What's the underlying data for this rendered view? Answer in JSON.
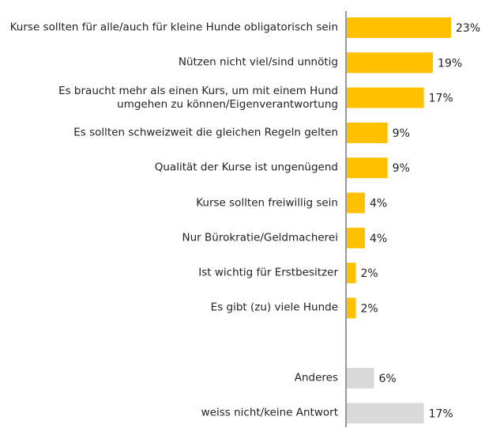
{
  "chart_data": {
    "type": "barh",
    "categories": [
      "Kurse sollten für alle/auch für kleine Hunde obligatorisch sein",
      "Nützen nicht viel/sind unnötig",
      "Es braucht mehr als einen Kurs, um mit einem Hund\numgehen zu können/Eigenverantwortung",
      "Es sollten schweizweit die gleichen Regeln gelten",
      "Qualität der Kurse ist ungenügend",
      "Kurse sollten freiwillig sein",
      "Nur Bürokratie/Geldmacherei",
      "Ist wichtig für Erstbesitzer",
      "Es gibt (zu) viele Hunde",
      null,
      "Anderes",
      "weiss nicht/keine Antwort"
    ],
    "values": [
      23,
      19,
      17,
      9,
      9,
      4,
      4,
      2,
      2,
      null,
      6,
      17
    ],
    "value_labels": [
      "23%",
      "19%",
      "17%",
      "9%",
      "9%",
      "4%",
      "4%",
      "2%",
      "2%",
      null,
      "6%",
      "17%"
    ],
    "colors": [
      "#ffc000",
      "#ffc000",
      "#ffc000",
      "#ffc000",
      "#ffc000",
      "#ffc000",
      "#ffc000",
      "#ffc000",
      "#ffc000",
      null,
      "#d9d9d9",
      "#d9d9d9"
    ]
  }
}
